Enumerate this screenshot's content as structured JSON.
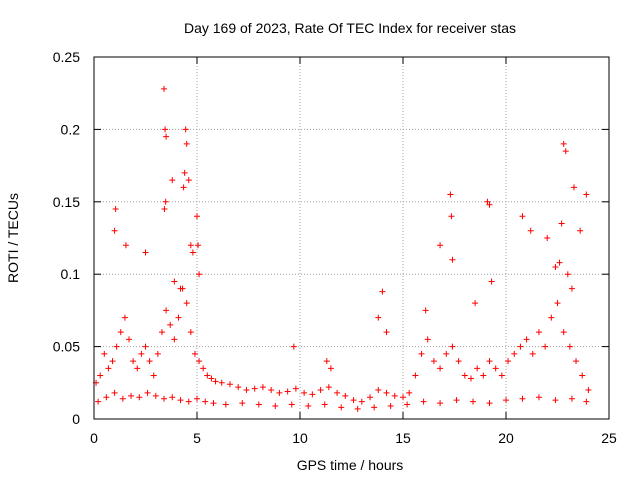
{
  "chart_data": {
    "type": "scatter",
    "title": "Day 169 of 2023, Rate Of TEC Index for receiver stas",
    "xlabel": "GPS time / hours",
    "ylabel": "ROTI / TECUs",
    "xlim": [
      0,
      25
    ],
    "ylim": [
      0,
      0.25
    ],
    "x_ticks": [
      0,
      5,
      10,
      15,
      20,
      25
    ],
    "x_tick_labels": [
      "0",
      "5",
      "10",
      "15",
      "20",
      "25"
    ],
    "y_ticks": [
      0,
      0.05,
      0.1,
      0.15,
      0.2,
      0.25
    ],
    "y_tick_labels": [
      "0",
      "0.05",
      "0.1",
      "0.15",
      "0.2",
      "0.25"
    ],
    "grid": true,
    "marker": "plus",
    "color": "#ff0000",
    "series": [
      {
        "x": [
          0.1,
          0.3,
          0.5,
          0.7,
          0.9,
          1.1,
          1.3,
          1.5,
          1.7,
          1.9,
          2.1,
          2.3,
          2.5,
          2.7,
          2.9,
          3.1,
          3.3,
          3.5,
          3.7,
          3.9,
          4.1,
          4.3,
          4.5,
          4.7,
          4.9,
          5.1,
          5.3,
          5.5,
          5.7,
          5.9,
          6.2,
          6.6,
          7.0,
          7.4,
          7.8,
          8.2,
          8.6,
          9.0,
          9.4,
          9.8,
          10.2,
          10.6,
          11.0,
          11.4,
          11.8,
          12.2,
          12.6,
          13.0,
          13.4,
          13.8,
          14.2,
          14.6,
          15.0,
          15.3,
          15.6,
          15.9,
          16.2,
          16.5,
          16.8,
          17.1,
          17.4,
          17.7,
          18.0,
          18.3,
          18.6,
          18.9,
          19.2,
          19.5,
          19.8,
          20.1,
          20.4,
          20.7,
          21.0,
          21.3,
          21.6,
          21.9,
          22.2,
          22.5,
          22.8,
          23.1,
          23.4,
          23.7,
          24.0,
          0.2,
          0.6,
          1.0,
          1.4,
          1.8,
          2.2,
          2.6,
          3.0,
          3.4,
          3.8,
          4.2,
          4.6,
          5.0,
          5.4,
          5.8,
          6.4,
          7.2,
          8.0,
          8.8,
          9.6,
          10.4,
          11.2,
          12.0,
          12.8,
          13.6,
          14.4,
          15.2,
          16.0,
          16.8,
          17.6,
          18.4,
          19.2,
          20.0,
          20.8,
          21.6,
          22.4,
          23.2,
          23.9,
          3.4,
          3.45,
          3.5,
          3.42,
          3.48,
          4.4,
          4.45,
          4.5,
          4.35,
          4.6,
          4.7,
          4.8,
          5.0,
          5.05,
          5.1,
          1.0,
          1.05,
          1.55,
          2.5,
          3.8,
          16.8,
          17.3,
          17.35,
          17.4,
          19.1,
          19.2,
          19.3,
          20.8,
          21.2,
          22.0,
          22.4,
          22.6,
          22.7,
          22.8,
          22.9,
          23.3,
          23.6,
          23.9,
          4.2,
          3.9,
          13.8,
          14.0,
          11.3,
          11.5,
          9.7,
          14.2,
          16.1,
          18.5,
          23.0,
          23.2
        ],
        "y": [
          0.025,
          0.03,
          0.045,
          0.035,
          0.04,
          0.05,
          0.06,
          0.07,
          0.055,
          0.04,
          0.035,
          0.045,
          0.05,
          0.04,
          0.03,
          0.045,
          0.06,
          0.075,
          0.065,
          0.055,
          0.07,
          0.09,
          0.08,
          0.06,
          0.045,
          0.04,
          0.035,
          0.03,
          0.028,
          0.026,
          0.025,
          0.024,
          0.022,
          0.02,
          0.021,
          0.022,
          0.02,
          0.018,
          0.019,
          0.021,
          0.018,
          0.017,
          0.02,
          0.022,
          0.018,
          0.016,
          0.013,
          0.012,
          0.015,
          0.02,
          0.018,
          0.016,
          0.015,
          0.018,
          0.03,
          0.045,
          0.055,
          0.04,
          0.035,
          0.045,
          0.05,
          0.04,
          0.03,
          0.028,
          0.035,
          0.03,
          0.04,
          0.035,
          0.03,
          0.04,
          0.045,
          0.05,
          0.055,
          0.045,
          0.06,
          0.05,
          0.07,
          0.08,
          0.06,
          0.05,
          0.04,
          0.03,
          0.02,
          0.012,
          0.015,
          0.018,
          0.014,
          0.016,
          0.015,
          0.018,
          0.016,
          0.014,
          0.015,
          0.013,
          0.012,
          0.014,
          0.012,
          0.011,
          0.01,
          0.011,
          0.01,
          0.009,
          0.01,
          0.009,
          0.01,
          0.008,
          0.007,
          0.008,
          0.009,
          0.01,
          0.012,
          0.011,
          0.013,
          0.012,
          0.011,
          0.013,
          0.014,
          0.015,
          0.013,
          0.014,
          0.012,
          0.228,
          0.2,
          0.195,
          0.145,
          0.15,
          0.17,
          0.2,
          0.19,
          0.16,
          0.165,
          0.12,
          0.115,
          0.14,
          0.12,
          0.1,
          0.13,
          0.145,
          0.12,
          0.115,
          0.165,
          0.12,
          0.155,
          0.14,
          0.11,
          0.15,
          0.148,
          0.095,
          0.14,
          0.13,
          0.125,
          0.105,
          0.108,
          0.135,
          0.19,
          0.185,
          0.16,
          0.13,
          0.155,
          0.09,
          0.095,
          0.07,
          0.088,
          0.04,
          0.035,
          0.05,
          0.06,
          0.075,
          0.08,
          0.1,
          0.09
        ]
      }
    ]
  }
}
